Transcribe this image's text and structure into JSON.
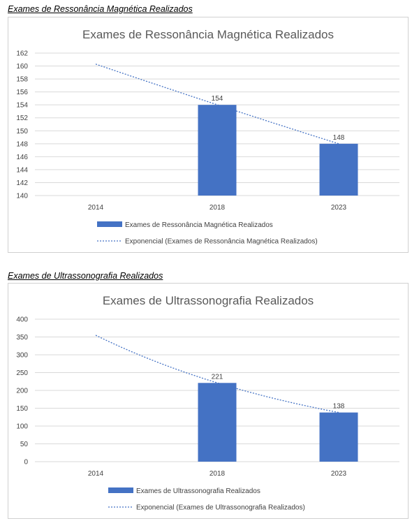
{
  "charts_section": [
    {
      "heading": "Exames de Ressonância Magnética Realizados"
    },
    {
      "heading": "Exames de Ultrassonografia Realizados"
    }
  ],
  "chart_data": [
    {
      "type": "bar",
      "title": "Exames de Ressonância Magnética Realizados",
      "categories": [
        "2014",
        "2018",
        "2023"
      ],
      "series": [
        {
          "name": "Exames de Ressonância Magnética Realizados",
          "values": [
            null,
            154,
            148
          ],
          "color": "#4472c4"
        }
      ],
      "trendline": {
        "name": "Exponencial (Exames de Ressonância Magnética Realizados)",
        "type": "exponential",
        "values": [
          160.3,
          153.9,
          148.0
        ],
        "color": "#4472c4"
      },
      "ylim": [
        140,
        162
      ],
      "yticks": [
        "140",
        "142",
        "144",
        "146",
        "148",
        "150",
        "152",
        "154",
        "156",
        "158",
        "160",
        "162"
      ],
      "data_labels": [
        "154",
        "148"
      ],
      "grid": true,
      "legend": "bottom"
    },
    {
      "type": "bar",
      "title": "Exames de Ultrassonografia Realizados",
      "categories": [
        "2014",
        "2018",
        "2023"
      ],
      "series": [
        {
          "name": "Exames de Ultrassonografia Realizados",
          "values": [
            null,
            221,
            138
          ],
          "color": "#4472c4"
        }
      ],
      "trendline": {
        "name": "Exponencial (Exames de Ultrassonografia Realizados)",
        "type": "exponential",
        "values": [
          355,
          221,
          138
        ],
        "color": "#4472c4"
      },
      "ylim": [
        0,
        400
      ],
      "yticks": [
        "0",
        "50",
        "100",
        "150",
        "200",
        "250",
        "300",
        "350",
        "400"
      ],
      "data_labels": [
        "221",
        "138"
      ],
      "grid": true,
      "legend": "bottom"
    }
  ]
}
